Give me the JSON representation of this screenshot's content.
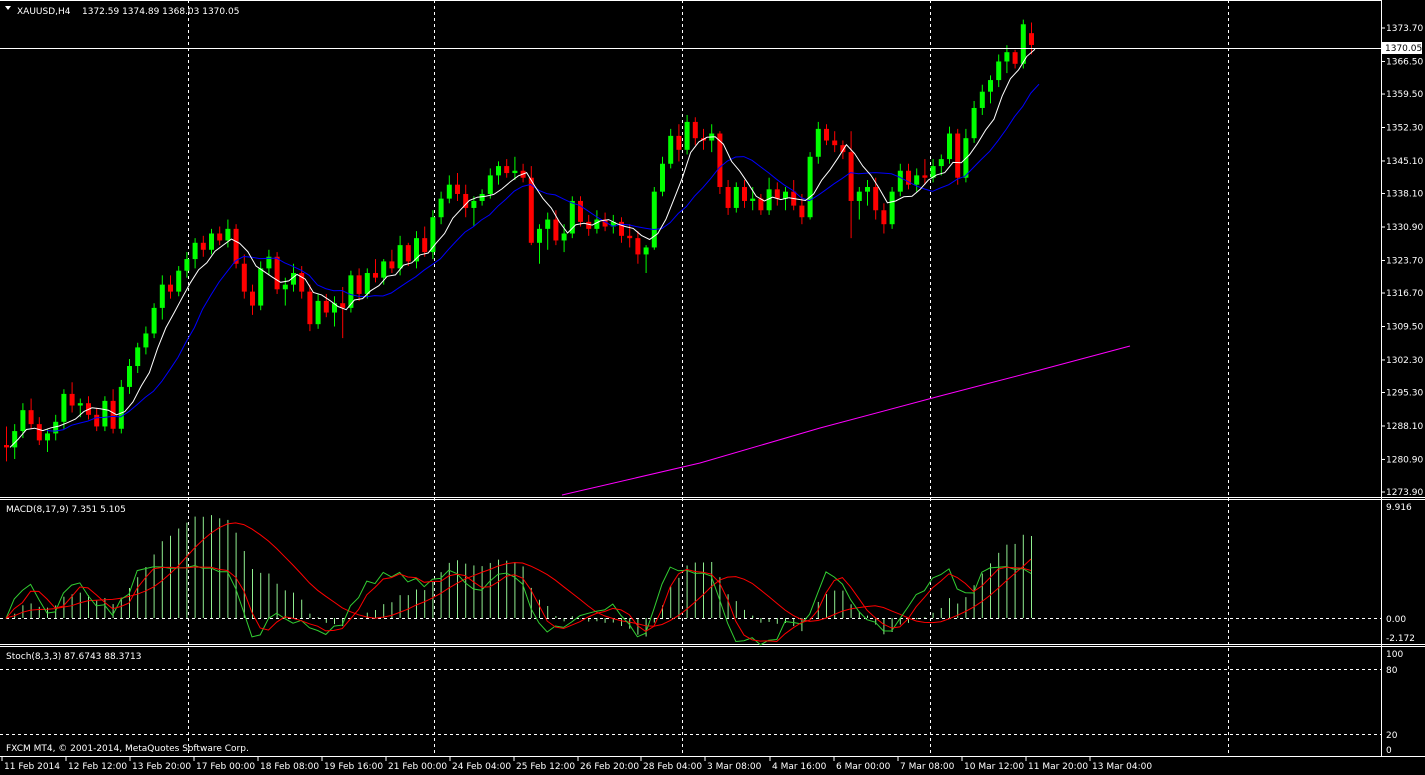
{
  "header": {
    "symbol_tf": "XAUUSD,H4",
    "ohlc": "1372.59 1374.89 1368.03 1370.05"
  },
  "colors": {
    "background": "#000000",
    "bull_candle": "#00ff00",
    "bear_candle": "#ff0000",
    "ma_fast": "#ffffff",
    "ma_mid": "#0000ff",
    "ma_slow": "#ff00ff",
    "macd_hist": "#90ee90",
    "macd_signal": "#ff0000",
    "stoch_main": "#32cd32",
    "stoch_signal": "#ff0000",
    "grid": "#ffffff"
  },
  "price_axis": {
    "labels": [
      "1373.70",
      "1366.50",
      "1359.50",
      "1352.30",
      "1345.10",
      "1338.10",
      "1330.90",
      "1323.70",
      "1316.70",
      "1309.50",
      "1302.30",
      "1295.30",
      "1288.10",
      "1280.90",
      "1273.90"
    ],
    "current_price": "1370.05"
  },
  "macd": {
    "label": "MACD(8,17,9) 7.351 5.105",
    "axis_top": "9.916",
    "axis_zero": "0.00",
    "axis_bottom": "-2.172"
  },
  "stoch": {
    "label": "Stoch(8,3,3) 87.6743 88.3713",
    "level_100": "100",
    "level_80": "80",
    "level_20": "20",
    "level_0": "0"
  },
  "copyright": "FXCM MT4, © 2001-2014, MetaQuotes Software Corp.",
  "time_axis": [
    "11 Feb 2014",
    "12 Feb 12:00",
    "13 Feb 20:00",
    "17 Feb 00:00",
    "18 Feb 08:00",
    "19 Feb 16:00",
    "21 Feb 00:00",
    "24 Feb 04:00",
    "25 Feb 12:00",
    "26 Feb 20:00",
    "28 Feb 04:00",
    "3 Mar 08:00",
    "4 Mar 16:00",
    "6 Mar 00:00",
    "7 Mar 08:00",
    "10 Mar 12:00",
    "11 Mar 20:00",
    "13 Mar 04:00"
  ],
  "chart_data": {
    "type": "candlestick",
    "symbol": "XAUUSD",
    "timeframe": "H4",
    "ylim": [
      1273.9,
      1377.0
    ],
    "candles": [
      [
        1284.0,
        1288.0,
        1280.5,
        1283.5
      ],
      [
        1283.5,
        1288.5,
        1281.0,
        1287.0
      ],
      [
        1287.0,
        1293.0,
        1285.5,
        1291.5
      ],
      [
        1291.5,
        1294.0,
        1287.5,
        1288.5
      ],
      [
        1288.5,
        1290.0,
        1284.0,
        1285.0
      ],
      [
        1285.0,
        1287.5,
        1282.5,
        1286.5
      ],
      [
        1286.5,
        1290.5,
        1285.0,
        1289.0
      ],
      [
        1289.0,
        1296.0,
        1287.5,
        1295.0
      ],
      [
        1295.0,
        1297.5,
        1291.0,
        1292.5
      ],
      [
        1292.5,
        1294.0,
        1290.0,
        1293.0
      ],
      [
        1293.0,
        1294.5,
        1289.5,
        1290.5
      ],
      [
        1290.5,
        1292.0,
        1287.0,
        1288.0
      ],
      [
        1288.0,
        1294.5,
        1287.0,
        1293.5
      ],
      [
        1293.5,
        1296.0,
        1286.5,
        1287.5
      ],
      [
        1287.5,
        1298.0,
        1286.5,
        1296.5
      ],
      [
        1296.5,
        1302.5,
        1295.0,
        1301.0
      ],
      [
        1301.0,
        1306.0,
        1299.5,
        1305.0
      ],
      [
        1305.0,
        1309.5,
        1303.5,
        1308.0
      ],
      [
        1308.0,
        1314.5,
        1307.0,
        1313.5
      ],
      [
        1313.5,
        1320.5,
        1311.0,
        1318.5
      ],
      [
        1318.5,
        1320.5,
        1315.5,
        1317.0
      ],
      [
        1317.0,
        1322.5,
        1316.0,
        1321.5
      ],
      [
        1321.5,
        1325.5,
        1320.0,
        1324.0
      ],
      [
        1324.0,
        1328.5,
        1322.0,
        1327.5
      ],
      [
        1327.5,
        1329.0,
        1324.5,
        1326.0
      ],
      [
        1326.0,
        1330.5,
        1325.0,
        1329.5
      ],
      [
        1329.5,
        1331.0,
        1327.0,
        1328.0
      ],
      [
        1328.0,
        1332.5,
        1326.5,
        1330.5
      ],
      [
        1330.5,
        1331.5,
        1322.0,
        1323.0
      ],
      [
        1323.0,
        1325.0,
        1315.5,
        1317.0
      ],
      [
        1317.0,
        1318.5,
        1312.0,
        1314.0
      ],
      [
        1314.0,
        1323.5,
        1313.0,
        1322.0
      ],
      [
        1322.0,
        1326.0,
        1320.5,
        1324.5
      ],
      [
        1324.5,
        1325.5,
        1316.5,
        1317.5
      ],
      [
        1317.5,
        1320.0,
        1314.0,
        1318.5
      ],
      [
        1318.5,
        1323.0,
        1317.0,
        1321.0
      ],
      [
        1321.0,
        1322.5,
        1315.5,
        1317.0
      ],
      [
        1317.0,
        1318.5,
        1308.5,
        1310.0
      ],
      [
        1310.0,
        1316.5,
        1309.0,
        1315.0
      ],
      [
        1315.0,
        1316.5,
        1311.5,
        1312.5
      ],
      [
        1312.5,
        1316.0,
        1309.5,
        1314.5
      ],
      [
        1314.5,
        1318.0,
        1307.0,
        1313.5
      ],
      [
        1313.5,
        1321.5,
        1312.5,
        1320.5
      ],
      [
        1320.5,
        1322.0,
        1315.0,
        1316.5
      ],
      [
        1316.5,
        1322.0,
        1315.5,
        1321.0
      ],
      [
        1321.0,
        1324.0,
        1319.0,
        1320.0
      ],
      [
        1320.0,
        1324.0,
        1318.5,
        1323.5
      ],
      [
        1323.5,
        1326.0,
        1321.0,
        1322.0
      ],
      [
        1322.0,
        1329.0,
        1320.5,
        1327.0
      ],
      [
        1327.0,
        1327.5,
        1322.5,
        1323.5
      ],
      [
        1323.5,
        1330.0,
        1322.0,
        1328.5
      ],
      [
        1328.5,
        1331.0,
        1324.5,
        1325.5
      ],
      [
        1325.5,
        1334.5,
        1324.0,
        1333.0
      ],
      [
        1333.0,
        1338.5,
        1331.5,
        1337.0
      ],
      [
        1337.0,
        1342.0,
        1336.0,
        1340.0
      ],
      [
        1340.0,
        1342.5,
        1336.5,
        1338.0
      ],
      [
        1338.0,
        1340.0,
        1333.0,
        1335.0
      ],
      [
        1335.0,
        1337.5,
        1331.0,
        1336.5
      ],
      [
        1336.5,
        1339.0,
        1335.5,
        1338.0
      ],
      [
        1338.0,
        1343.5,
        1337.0,
        1342.0
      ],
      [
        1342.0,
        1345.0,
        1340.0,
        1344.0
      ],
      [
        1344.0,
        1345.5,
        1341.5,
        1342.5
      ],
      [
        1342.5,
        1346.0,
        1341.0,
        1343.0
      ],
      [
        1343.0,
        1344.5,
        1340.5,
        1341.5
      ],
      [
        1341.5,
        1344.0,
        1327.0,
        1327.5
      ],
      [
        1327.5,
        1331.5,
        1323.0,
        1330.5
      ],
      [
        1330.5,
        1334.0,
        1326.0,
        1332.5
      ],
      [
        1332.5,
        1334.5,
        1327.0,
        1328.0
      ],
      [
        1328.0,
        1331.5,
        1325.5,
        1329.5
      ],
      [
        1329.5,
        1337.5,
        1328.5,
        1336.5
      ],
      [
        1336.5,
        1337.5,
        1331.0,
        1332.0
      ],
      [
        1332.0,
        1333.5,
        1329.0,
        1330.5
      ],
      [
        1330.5,
        1334.5,
        1329.5,
        1332.5
      ],
      [
        1332.5,
        1334.0,
        1330.0,
        1331.0
      ],
      [
        1331.0,
        1333.5,
        1329.5,
        1332.0
      ],
      [
        1332.0,
        1333.0,
        1327.5,
        1329.0
      ],
      [
        1329.0,
        1331.5,
        1326.5,
        1328.5
      ],
      [
        1328.5,
        1330.0,
        1323.0,
        1325.0
      ],
      [
        1325.0,
        1327.0,
        1321.0,
        1326.5
      ],
      [
        1326.5,
        1339.5,
        1326.0,
        1338.5
      ],
      [
        1338.5,
        1346.0,
        1337.5,
        1344.5
      ],
      [
        1344.5,
        1352.0,
        1343.5,
        1350.5
      ],
      [
        1350.5,
        1353.0,
        1345.0,
        1347.5
      ],
      [
        1347.5,
        1355.0,
        1346.5,
        1353.5
      ],
      [
        1353.5,
        1354.5,
        1348.5,
        1350.0
      ],
      [
        1350.0,
        1352.0,
        1347.5,
        1349.5
      ],
      [
        1349.5,
        1353.0,
        1347.0,
        1351.0
      ],
      [
        1351.0,
        1351.5,
        1338.0,
        1339.5
      ],
      [
        1339.5,
        1341.0,
        1333.5,
        1335.0
      ],
      [
        1335.0,
        1340.5,
        1334.0,
        1339.5
      ],
      [
        1339.5,
        1341.0,
        1335.0,
        1336.5
      ],
      [
        1336.5,
        1339.5,
        1334.5,
        1337.0
      ],
      [
        1337.0,
        1338.0,
        1333.5,
        1334.5
      ],
      [
        1334.5,
        1341.5,
        1333.5,
        1339.0
      ],
      [
        1339.0,
        1340.5,
        1335.5,
        1337.0
      ],
      [
        1337.0,
        1339.5,
        1334.5,
        1338.5
      ],
      [
        1338.5,
        1341.0,
        1334.5,
        1335.5
      ],
      [
        1335.5,
        1338.0,
        1331.5,
        1333.0
      ],
      [
        1333.0,
        1347.0,
        1332.5,
        1346.0
      ],
      [
        1346.0,
        1353.5,
        1344.5,
        1352.0
      ],
      [
        1352.0,
        1353.0,
        1348.5,
        1349.5
      ],
      [
        1349.5,
        1351.5,
        1347.0,
        1348.5
      ],
      [
        1348.5,
        1349.5,
        1345.5,
        1347.0
      ],
      [
        1347.0,
        1351.5,
        1328.5,
        1336.5
      ],
      [
        1336.5,
        1339.5,
        1332.5,
        1338.5
      ],
      [
        1338.5,
        1341.0,
        1335.5,
        1339.5
      ],
      [
        1339.5,
        1341.5,
        1332.5,
        1334.5
      ],
      [
        1334.5,
        1336.0,
        1329.5,
        1331.5
      ],
      [
        1331.5,
        1339.5,
        1330.5,
        1338.5
      ],
      [
        1338.5,
        1344.5,
        1337.5,
        1343.0
      ],
      [
        1343.0,
        1344.5,
        1339.0,
        1340.0
      ],
      [
        1340.0,
        1343.5,
        1338.5,
        1342.0
      ],
      [
        1342.0,
        1345.5,
        1340.0,
        1341.5
      ],
      [
        1341.5,
        1345.5,
        1340.5,
        1344.0
      ],
      [
        1344.0,
        1346.5,
        1342.0,
        1345.5
      ],
      [
        1345.5,
        1352.5,
        1344.5,
        1351.0
      ],
      [
        1351.0,
        1352.0,
        1340.0,
        1341.5
      ],
      [
        1341.5,
        1352.0,
        1340.5,
        1350.0
      ],
      [
        1350.0,
        1358.0,
        1349.0,
        1356.5
      ],
      [
        1356.5,
        1361.5,
        1355.0,
        1360.0
      ],
      [
        1360.0,
        1363.5,
        1357.5,
        1362.5
      ],
      [
        1362.5,
        1368.0,
        1361.0,
        1366.5
      ],
      [
        1366.5,
        1370.0,
        1364.0,
        1368.5
      ],
      [
        1368.5,
        1369.0,
        1365.0,
        1366.0
      ],
      [
        1366.0,
        1375.5,
        1365.0,
        1374.5
      ],
      [
        1372.59,
        1374.89,
        1368.03,
        1370.05
      ]
    ]
  }
}
